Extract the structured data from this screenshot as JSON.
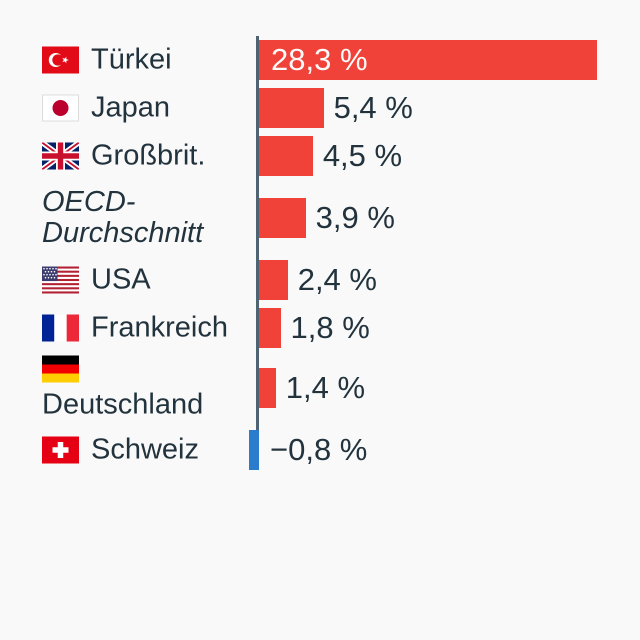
{
  "chart_data": {
    "type": "bar",
    "orientation": "horizontal",
    "unit": "%",
    "title": "",
    "legend": null,
    "grid": false,
    "axis": {
      "baseline_value": 0,
      "approx_max": 28.3,
      "approx_min": -0.8
    },
    "colors": {
      "positive_bar": "#f04238",
      "negative_bar": "#2b7ccd",
      "axis_line": "#4e6473",
      "label_text": "#22333d",
      "value_inside_text": "#fafafa",
      "background": "#f9f9f9"
    },
    "rows": [
      {
        "country": "Türkei",
        "flag": "tr",
        "value": 28.3,
        "value_label": "28,3 %",
        "value_inside": true,
        "italic": false,
        "flag_position": "left"
      },
      {
        "country": "Japan",
        "flag": "jp",
        "value": 5.4,
        "value_label": "5,4 %",
        "value_inside": false,
        "italic": false,
        "flag_position": "left"
      },
      {
        "country": "Großbrit.",
        "flag": "gb",
        "value": 4.5,
        "value_label": "4,5 %",
        "value_inside": false,
        "italic": false,
        "flag_position": "left"
      },
      {
        "country": "OECD-\nDurchschnitt",
        "flag": null,
        "value": 3.9,
        "value_label": "3,9 %",
        "value_inside": false,
        "italic": true,
        "flag_position": null
      },
      {
        "country": "USA",
        "flag": "us",
        "value": 2.4,
        "value_label": "2,4 %",
        "value_inside": false,
        "italic": false,
        "flag_position": "left"
      },
      {
        "country": "Frankreich",
        "flag": "fr",
        "value": 1.8,
        "value_label": "1,8 %",
        "value_inside": false,
        "italic": false,
        "flag_position": "left"
      },
      {
        "country": "Deutschland",
        "flag": "de",
        "value": 1.4,
        "value_label": "1,4 %",
        "value_inside": false,
        "italic": false,
        "flag_position": "above"
      },
      {
        "country": "Schweiz",
        "flag": "ch",
        "value": -0.8,
        "value_label": "−0,8 %",
        "value_inside": false,
        "italic": false,
        "flag_position": "left"
      }
    ]
  }
}
